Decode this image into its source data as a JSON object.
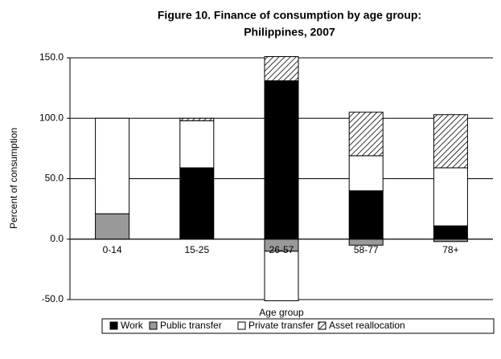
{
  "chart_data": {
    "type": "stacked-bar",
    "title": [
      "Figure 10. Finance of consumption by age group:",
      "Philippines, 2007"
    ],
    "xlabel": "Age group",
    "ylabel": "Percent of consumption",
    "categories": [
      "0-14",
      "15-25",
      "26-57",
      "58-77",
      "78+"
    ],
    "series": [
      {
        "name": "Work",
        "color": "#000000",
        "values": [
          0,
          59,
          131,
          40,
          11
        ]
      },
      {
        "name": "Public transfer",
        "color": "#999999",
        "values": [
          21,
          0,
          -10,
          -5,
          -2
        ]
      },
      {
        "name": "Private transfer",
        "color": "#ffffff",
        "values": [
          79,
          39,
          -41,
          29,
          48
        ]
      },
      {
        "name": "Asset reallocation",
        "color": "#ffffff",
        "pattern": "hatch",
        "values": [
          0,
          2,
          20,
          36,
          44
        ]
      }
    ],
    "ylim": [
      -50,
      150
    ],
    "yticks": [
      {
        "value": -50,
        "label": "-50.0"
      },
      {
        "value": 0,
        "label": "0.0"
      },
      {
        "value": 50,
        "label": "50.0"
      },
      {
        "value": 100,
        "label": "100.0"
      },
      {
        "value": 150,
        "label": "150.0"
      }
    ],
    "grid": true,
    "legend": "bottom"
  }
}
